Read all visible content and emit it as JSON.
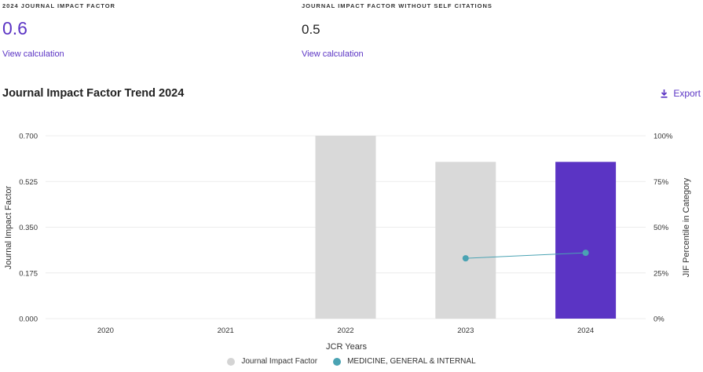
{
  "metrics": {
    "jif": {
      "label": "2024 JOURNAL IMPACT FACTOR",
      "value": "0.6",
      "link": "View calculation"
    },
    "jif_no_self": {
      "label": "JOURNAL IMPACT FACTOR WITHOUT SELF CITATIONS",
      "value": "0.5",
      "link": "View calculation"
    }
  },
  "trend": {
    "title": "Journal Impact Factor Trend 2024",
    "export_label": "Export"
  },
  "colors": {
    "accent": "#5b34c4",
    "bar_gray": "#d9d9d9",
    "line": "#4aa3b3"
  },
  "chart_data": {
    "type": "bar",
    "categories": [
      "2020",
      "2021",
      "2022",
      "2023",
      "2024"
    ],
    "series": [
      {
        "name": "Journal Impact Factor",
        "axis": "left",
        "type": "bar",
        "values": [
          null,
          null,
          0.7,
          0.6,
          0.6
        ],
        "highlight_category": "2024"
      },
      {
        "name": "MEDICINE, GENERAL & INTERNAL",
        "axis": "right",
        "type": "line",
        "values": [
          null,
          null,
          null,
          33,
          36
        ]
      }
    ],
    "xlabel": "JCR Years",
    "ylabel": "Journal Impact Factor",
    "ylabel_right": "JIF Percentile in Category",
    "ylim": [
      0,
      0.7
    ],
    "ylim_right": [
      0,
      100
    ],
    "yticks": [
      "0.000",
      "0.175",
      "0.350",
      "0.525",
      "0.700"
    ],
    "yticks_right": [
      "0%",
      "25%",
      "50%",
      "75%",
      "100%"
    ],
    "grid": true,
    "legend_position": "bottom-center"
  }
}
